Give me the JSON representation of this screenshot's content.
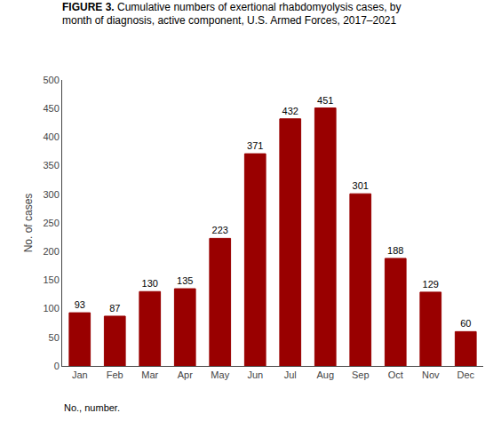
{
  "chart_data": {
    "type": "bar",
    "title": "FIGURE 3. Cumulative numbers of exertional rhabdomyolysis cases, by\nmonth of diagnosis, active component, U.S. Armed Forces, 2017–2021",
    "categories": [
      "Jan",
      "Feb",
      "Mar",
      "Apr",
      "May",
      "Jun",
      "Jul",
      "Aug",
      "Sep",
      "Oct",
      "Nov",
      "Dec"
    ],
    "values": [
      93,
      87,
      130,
      135,
      223,
      371,
      432,
      451,
      301,
      188,
      129,
      60
    ],
    "color": "#990000",
    "ylabel": "No. of cases",
    "ylim": [
      0,
      500
    ],
    "yticks": [
      0,
      50,
      100,
      150,
      200,
      250,
      300,
      350,
      400,
      450,
      500
    ],
    "data_labels": true,
    "grid": false,
    "annotations": [
      "No., number."
    ]
  }
}
